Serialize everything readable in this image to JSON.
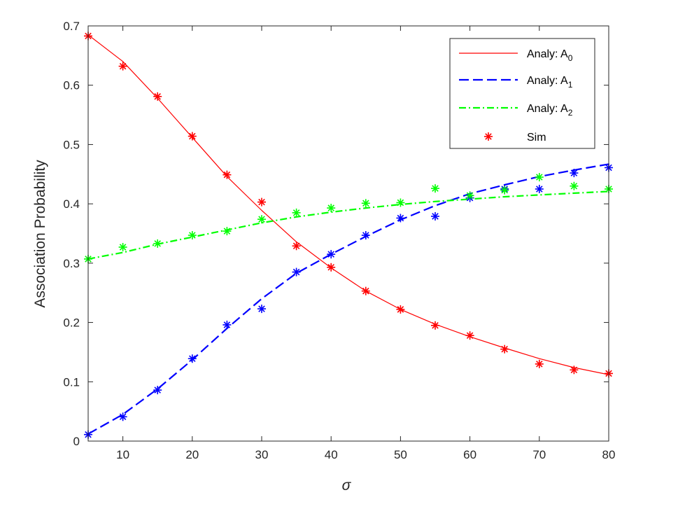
{
  "chart_data": {
    "type": "line",
    "xlabel": "σ",
    "ylabel": "Association Probability",
    "xlim": [
      5,
      80
    ],
    "ylim": [
      0,
      0.7
    ],
    "xticks": [
      10,
      20,
      30,
      40,
      50,
      60,
      70,
      80
    ],
    "yticks": [
      0,
      0.1,
      0.2,
      0.3,
      0.4,
      0.5,
      0.6,
      0.7
    ],
    "grid": false,
    "legend_position": "top-right",
    "x": [
      5,
      10,
      15,
      20,
      25,
      30,
      35,
      40,
      45,
      50,
      55,
      60,
      65,
      70,
      75,
      80
    ],
    "series": [
      {
        "name": "Analy: A",
        "subscript": "0",
        "color": "#ff0000",
        "style": "solid",
        "values": [
          0.685,
          0.64,
          0.578,
          0.512,
          0.446,
          0.389,
          0.336,
          0.292,
          0.253,
          0.222,
          0.197,
          0.176,
          0.157,
          0.139,
          0.124,
          0.112
        ]
      },
      {
        "name": "Analy: A",
        "subscript": "1",
        "color": "#0000ff",
        "style": "dashed",
        "values": [
          0.012,
          0.045,
          0.088,
          0.137,
          0.19,
          0.24,
          0.283,
          0.315,
          0.345,
          0.373,
          0.397,
          0.417,
          0.432,
          0.446,
          0.457,
          0.467
        ]
      },
      {
        "name": "Analy: A",
        "subscript": "2",
        "color": "#00ff00",
        "style": "dashdot",
        "values": [
          0.307,
          0.318,
          0.332,
          0.344,
          0.356,
          0.368,
          0.378,
          0.386,
          0.393,
          0.399,
          0.404,
          0.408,
          0.412,
          0.415,
          0.418,
          0.421
        ]
      }
    ],
    "sim_label": "Sim",
    "sim_series": [
      {
        "color": "#ff0000",
        "values": [
          0.683,
          0.632,
          0.581,
          0.514,
          0.449,
          0.403,
          0.329,
          0.293,
          0.253,
          0.222,
          0.195,
          0.178,
          0.155,
          0.13,
          0.12,
          0.114
        ]
      },
      {
        "color": "#0000ff",
        "values": [
          0.011,
          0.041,
          0.086,
          0.139,
          0.196,
          0.223,
          0.285,
          0.315,
          0.347,
          0.376,
          0.379,
          0.41,
          0.425,
          0.425,
          0.452,
          0.461
        ]
      },
      {
        "color": "#00ff00",
        "values": [
          0.307,
          0.327,
          0.333,
          0.347,
          0.354,
          0.374,
          0.385,
          0.393,
          0.401,
          0.402,
          0.426,
          0.414,
          0.423,
          0.445,
          0.43,
          0.425
        ]
      }
    ]
  }
}
